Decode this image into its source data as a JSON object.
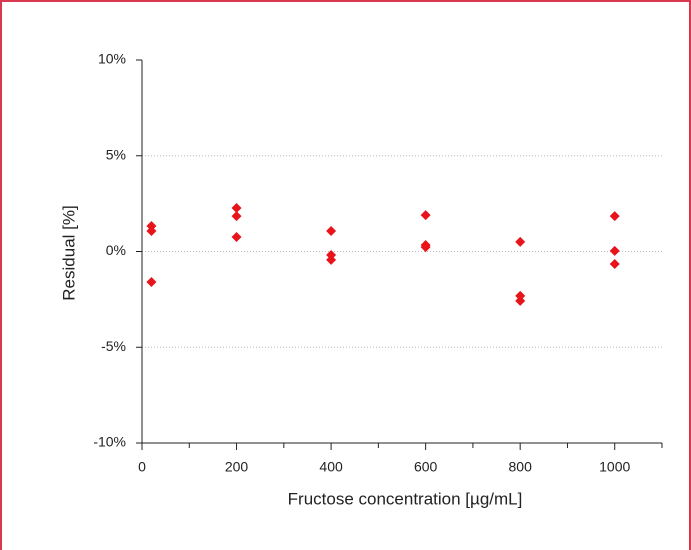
{
  "chart_data": {
    "type": "scatter",
    "x_label": "Fructose concentration [µg/mL]",
    "y_label": "Residual [%]",
    "x": [
      20,
      20,
      20,
      200,
      200,
      200,
      400,
      400,
      400,
      600,
      600,
      600,
      800,
      800,
      800,
      1000,
      1000,
      1000
    ],
    "values": [
      1.33,
      1.07,
      -1.59,
      2.27,
      1.85,
      0.76,
      1.07,
      -0.18,
      -0.44,
      1.9,
      0.34,
      0.23,
      0.5,
      -2.32,
      -2.58,
      1.85,
      0.03,
      -0.65
    ],
    "color": "#e8141c",
    "xlim": [
      0,
      1100
    ],
    "xticks": [
      0,
      200,
      400,
      600,
      800,
      1000
    ],
    "xminorticks": [
      100,
      300,
      500,
      700,
      900,
      1100
    ],
    "ylim": [
      -10,
      10
    ],
    "yticks": [
      {
        "value": -10,
        "label": "-10%"
      },
      {
        "value": -5,
        "label": "-5%"
      },
      {
        "value": 0,
        "label": "0%"
      },
      {
        "value": 5,
        "label": "5%"
      },
      {
        "value": 10,
        "label": "10%"
      }
    ],
    "grid": true
  }
}
